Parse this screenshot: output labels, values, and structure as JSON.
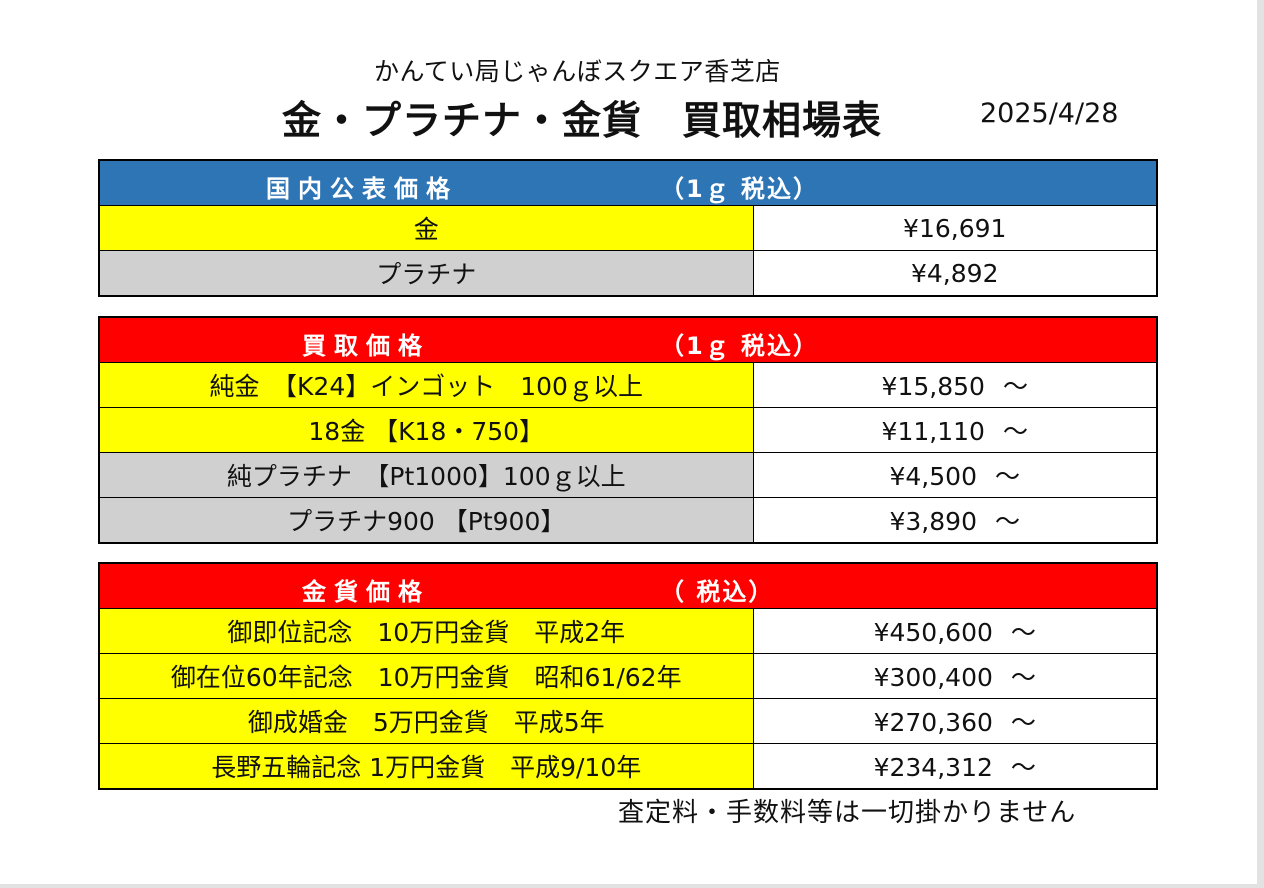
{
  "header": {
    "store_name": "かんてい局じゃんぼスクエア香芝店",
    "title": "金・プラチナ・金貨　買取相場表",
    "date": "2025/4/28"
  },
  "domestic": {
    "label": "国内公表価格",
    "unit": "（1ｇ 税込）",
    "rows": [
      {
        "name": "金",
        "price": "¥16,691"
      },
      {
        "name": "プラチナ",
        "price": "¥4,892"
      }
    ]
  },
  "buyback": {
    "label": "買取価格",
    "unit": "（1ｇ 税込）",
    "rows": [
      {
        "name": "純金　【K24】インゴット　100ｇ以上",
        "price": "¥15,850",
        "suffix": "～"
      },
      {
        "name": "18金 【K18・750】",
        "price": "¥11,110",
        "suffix": "～"
      },
      {
        "name": "純プラチナ　【Pt1000】100ｇ以上",
        "price": "¥4,500",
        "suffix": "～"
      },
      {
        "name": "プラチナ900 【Pt900】",
        "price": "¥3,890",
        "suffix": "～"
      }
    ]
  },
  "coins": {
    "label": "金貨価格",
    "unit": "（ 税込）",
    "rows": [
      {
        "name": "御即位記念　10万円金貨　平成2年",
        "price": "¥450,600",
        "suffix": "～"
      },
      {
        "name": "御在位60年記念　10万円金貨　昭和61/62年",
        "price": "¥300,400",
        "suffix": "～"
      },
      {
        "name": "御成婚金　5万円金貨　平成5年",
        "price": "¥270,360",
        "suffix": "～"
      },
      {
        "name": "長野五輪記念 1万円金貨　平成9/10年",
        "price": "¥234,312",
        "suffix": "～"
      }
    ]
  },
  "footer": {
    "note": "査定料・手数料等は一切掛かりません"
  },
  "colors": {
    "domestic_header": "#2e75b6",
    "buyback_header": "#ff0000",
    "coin_header": "#ff0000",
    "gold_row": "#ffff00",
    "platinum_row": "#d0d0d0"
  }
}
